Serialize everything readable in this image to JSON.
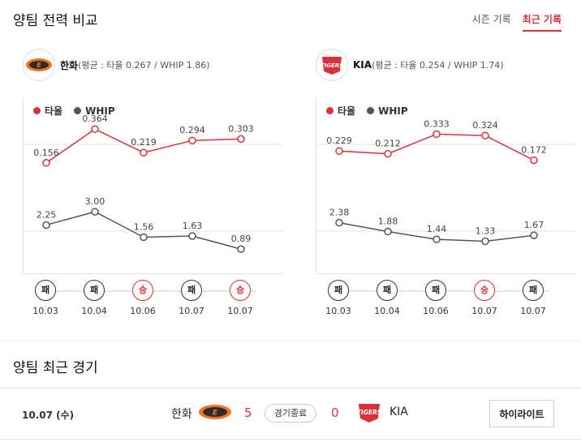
{
  "section1": {
    "title": "양팀 전력 비교"
  },
  "tabs": [
    {
      "label": "시즌 기록",
      "active": false
    },
    {
      "label": "최근 기록",
      "active": true
    }
  ],
  "legend": {
    "avg": "타율",
    "whip": "WHIP"
  },
  "colors": {
    "avg": "#d8323b",
    "whip": "#555555",
    "accent": "#d8323b"
  },
  "teams": [
    {
      "name": "한화",
      "stat": "(평균 : 타율 0.267 / WHIP 1.86)",
      "logo_text": "Eagles",
      "chart_data": {
        "type": "line",
        "x": [
          "10.03",
          "10.04",
          "10.06",
          "10.07",
          "10.07"
        ],
        "series": [
          {
            "name": "타율",
            "values": [
              0.156,
              0.364,
              0.219,
              0.294,
              0.303
            ],
            "labels": [
              "0.156",
              "0.364",
              "0.219",
              "0.294",
              "0.303"
            ]
          },
          {
            "name": "WHIP",
            "values": [
              2.25,
              3.0,
              1.56,
              1.63,
              0.89
            ],
            "labels": [
              "2.25",
              "3.00",
              "1.56",
              "1.63",
              "0.89"
            ]
          }
        ]
      },
      "results": [
        {
          "res": "패",
          "date": "10.03",
          "win": false
        },
        {
          "res": "패",
          "date": "10.04",
          "win": false
        },
        {
          "res": "승",
          "date": "10.06",
          "win": true
        },
        {
          "res": "패",
          "date": "10.07",
          "win": false
        },
        {
          "res": "승",
          "date": "10.07",
          "win": true
        }
      ]
    },
    {
      "name": "KIA",
      "stat": "(평균 : 타율 0.254 / WHIP 1.74)",
      "logo_text": "TIGERS",
      "chart_data": {
        "type": "line",
        "x": [
          "10.03",
          "10.04",
          "10.06",
          "10.07",
          "10.07"
        ],
        "series": [
          {
            "name": "타율",
            "values": [
              0.229,
              0.212,
              0.333,
              0.324,
              0.172
            ],
            "labels": [
              "0.229",
              "0.212",
              "0.333",
              "0.324",
              "0.172"
            ]
          },
          {
            "name": "WHIP",
            "values": [
              2.38,
              1.88,
              1.44,
              1.33,
              1.67
            ],
            "labels": [
              "2.38",
              "1.88",
              "1.44",
              "1.33",
              "1.67"
            ]
          }
        ]
      },
      "results": [
        {
          "res": "패",
          "date": "10.03",
          "win": false
        },
        {
          "res": "패",
          "date": "10.04",
          "win": false
        },
        {
          "res": "패",
          "date": "10.06",
          "win": false
        },
        {
          "res": "승",
          "date": "10.07",
          "win": true
        },
        {
          "res": "패",
          "date": "10.07",
          "win": false
        }
      ]
    }
  ],
  "section2": {
    "title": "양팀 최근 경기"
  },
  "match": {
    "date": "10.07 (수)",
    "home": "한화",
    "home_score": "5",
    "status": "경기종료",
    "away_score": "0",
    "away": "KIA",
    "highlight_label": "하이라이트"
  }
}
